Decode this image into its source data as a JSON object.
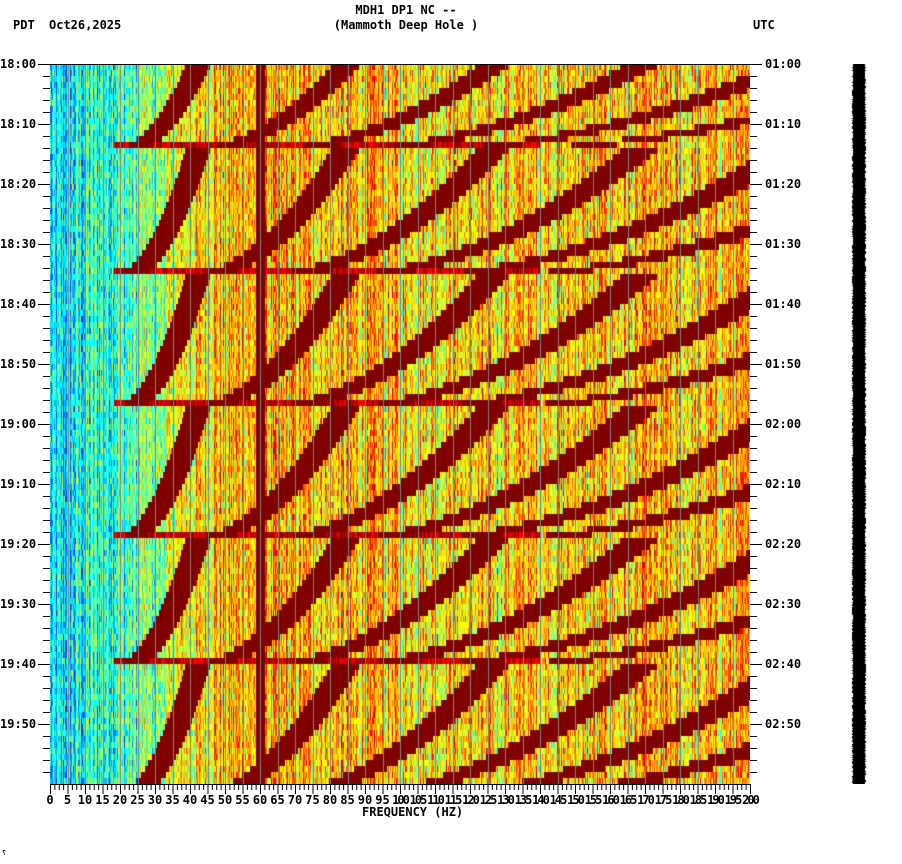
{
  "header": {
    "station_line": "MDH1 DP1 NC --",
    "site_name": "(Mammoth Deep Hole )",
    "left_timezone": "PDT",
    "date": "Oct26,2025",
    "right_timezone": "UTC"
  },
  "footer": {
    "corner_mark": "⸮"
  },
  "colors": {
    "background": "#ffffff",
    "axis": "#000000",
    "gridline": "#808080",
    "palette": [
      "#0040ff",
      "#0080ff",
      "#00c0ff",
      "#00ffff",
      "#40ffc0",
      "#80ff80",
      "#c0ff40",
      "#ffff00",
      "#ffc000",
      "#ff8000",
      "#ff4000",
      "#ff0000",
      "#c00000",
      "#800000"
    ],
    "amplitude_bar": "#000000"
  },
  "chart_data": {
    "type": "heatmap",
    "title": "MDH1 DP1 NC -- (Mammoth Deep Hole )",
    "subtitle": "Oct26,2025",
    "xlabel": "FREQUENCY (HZ)",
    "ylabel_left": "PDT",
    "ylabel_right": "UTC",
    "xlim": [
      0,
      200
    ],
    "x_ticks": [
      0,
      5,
      10,
      15,
      20,
      25,
      30,
      35,
      40,
      45,
      50,
      55,
      60,
      65,
      70,
      75,
      80,
      85,
      90,
      95,
      100,
      105,
      110,
      115,
      120,
      125,
      130,
      135,
      140,
      145,
      150,
      155,
      160,
      165,
      170,
      175,
      180,
      185,
      190,
      195,
      200
    ],
    "x_tick_labels": [
      "0",
      "5",
      "10",
      "15",
      "20",
      "25",
      "30",
      "35",
      "40",
      "45",
      "50",
      "55",
      "60",
      "65",
      "70",
      "75",
      "80",
      "85",
      "90",
      "95",
      "100",
      "105",
      "110",
      "115",
      "120",
      "125",
      "130",
      "135",
      "140",
      "145",
      "150",
      "155",
      "160",
      "165",
      "170",
      "175",
      "180",
      "185",
      "190",
      "195",
      "200"
    ],
    "y_left_labels": [
      "18:00",
      "18:10",
      "18:20",
      "18:30",
      "18:40",
      "18:50",
      "19:00",
      "19:10",
      "19:20",
      "19:30",
      "19:40",
      "19:50"
    ],
    "y_right_labels": [
      "01:00",
      "01:10",
      "01:20",
      "01:30",
      "01:40",
      "01:50",
      "02:00",
      "02:10",
      "02:20",
      "02:30",
      "02:40",
      "02:50"
    ],
    "y_range_minutes": [
      0,
      120
    ],
    "minor_tick_minutes": 2,
    "grid": {
      "vertical_every_hz": 5,
      "color": "#808080"
    },
    "colormap": "jet (blue low power to dark red high power)",
    "features": {
      "persistent_line_hz": 60,
      "low_freq_band_hz": [
        0,
        20
      ],
      "low_freq_color": "blue/cyan",
      "high_freq_band_hz": [
        130,
        200
      ],
      "high_freq_color": "yellow/orange",
      "repeating_event_start_minutes": [
        0,
        14,
        35,
        57,
        79,
        100
      ],
      "event_period_minutes_approx": 21.7,
      "harmonic_arc_start_hz": [
        20,
        40,
        60,
        80,
        100,
        120
      ],
      "description": "Repeating gliding harmonic tremor: dark red arcs that sweep from ~20-45 Hz at the bottom of each episode upward/rightward to higher frequencies over ~20 minutes; bright horizontal broadband bands mark episode onsets at ~18:14, 18:35, 18:57, 19:18, 19:40."
    },
    "legend": null
  }
}
